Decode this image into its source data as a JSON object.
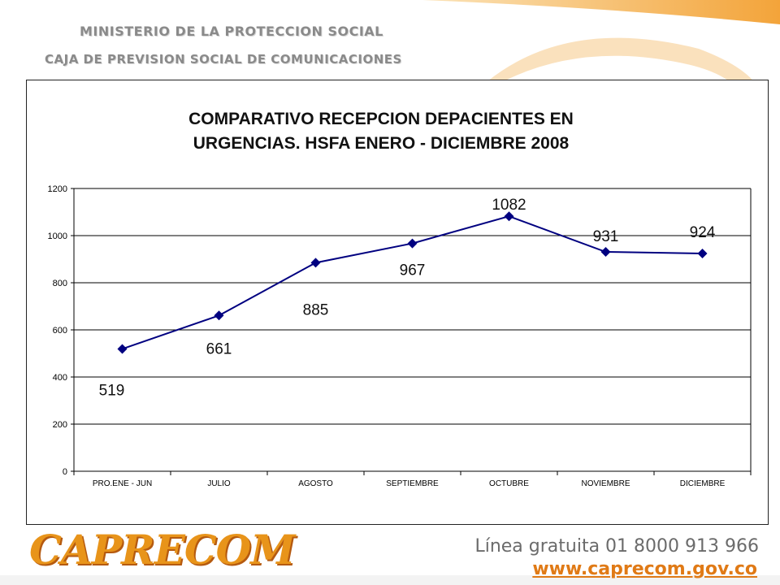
{
  "header": {
    "line1": "MINISTERIO DE LA PROTECCION SOCIAL",
    "line2": "CAJA DE PREVISION SOCIAL DE COMUNICACIONES"
  },
  "footer": {
    "logo_text": "CAPRECOM",
    "hotline": "Línea gratuita 01 8000 913 966",
    "website": "www.caprecom.gov.co"
  },
  "colors": {
    "series": "#000080",
    "brand_orange": "#e8941a"
  },
  "chart_data": {
    "type": "line",
    "title_line1": "COMPARATIVO RECEPCION DEPACIENTES EN",
    "title_line2": "URGENCIAS. HSFA ENERO - DICIEMBRE 2008",
    "categories": [
      "PRO.ENE - JUN",
      "JULIO",
      "AGOSTO",
      "SEPTIEMBRE",
      "OCTUBRE",
      "NOVIEMBRE",
      "DICIEMBRE"
    ],
    "values": [
      519,
      661,
      885,
      967,
      1082,
      931,
      924
    ],
    "data_labels": [
      "519",
      "661",
      "885",
      "967",
      "1082",
      "931",
      "924"
    ],
    "ylim": [
      0,
      1200
    ],
    "yticks": [
      0,
      200,
      400,
      600,
      800,
      1000,
      1200
    ],
    "grid": true,
    "legend": "none",
    "marker": "diamond"
  }
}
